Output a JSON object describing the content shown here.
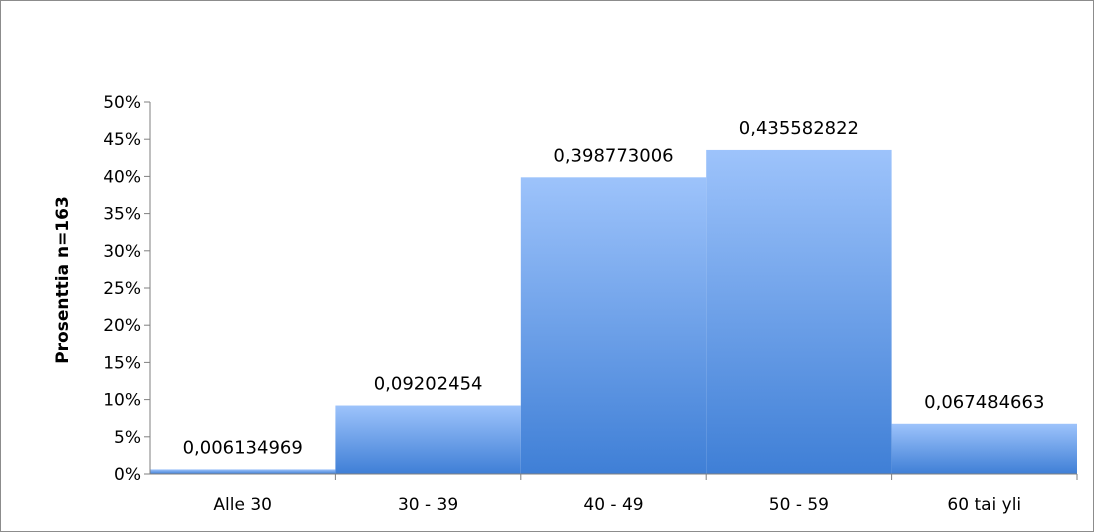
{
  "chart_data": {
    "type": "bar",
    "categories": [
      "Alle 30",
      "30 - 39",
      "40 - 49",
      "50 - 59",
      "60 tai yli"
    ],
    "values": [
      0.006134969,
      0.09202454,
      0.398773006,
      0.435582822,
      0.067484663
    ],
    "data_labels": [
      "0,006134969",
      "0,09202454",
      "0,398773006",
      "0,435582822",
      "0,067484663"
    ],
    "ylabel": "Prosenttia n=163",
    "xlabel": "",
    "ylim": [
      0,
      0.5
    ],
    "yticks": [
      "0%",
      "5%",
      "10%",
      "15%",
      "20%",
      "25%",
      "30%",
      "35%",
      "40%",
      "45%",
      "50%"
    ],
    "grid": false,
    "legend": "none",
    "colors": {
      "bar_top": "#9dc3fb",
      "bar_bottom": "#3f7fd6",
      "axis": "#7f7f7f"
    }
  }
}
